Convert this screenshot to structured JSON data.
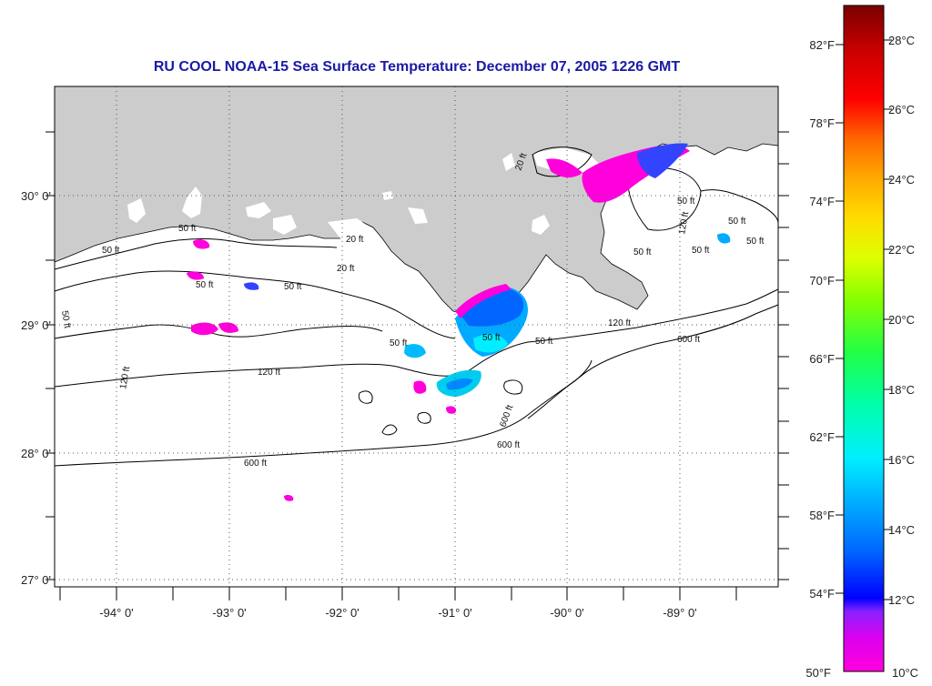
{
  "title": "RU COOL  NOAA-15  Sea Surface Temperature:  December 07, 2005 1226 GMT",
  "map": {
    "latitude_labels": [
      "30° 0'",
      "29° 0'",
      "28° 0'",
      "27° 0'"
    ],
    "longitude_labels": [
      "-94° 0'",
      "-93° 0'",
      "-92° 0'",
      "-91° 0'",
      "-90° 0'",
      "-89° 0'"
    ],
    "contour_labels": [
      "50 ft",
      "50 ft",
      "50 ft",
      "20 ft",
      "20 ft",
      "50 ft",
      "50 ft",
      "120 ft",
      "120 ft",
      "120 ft",
      "50 ft",
      "50 ft",
      "600 ft",
      "600 ft",
      "600 ft",
      "600 ft",
      "50 ft",
      "120 ft",
      "50 ft",
      "50 ft",
      "20 ft",
      "50 ft",
      "50 ft",
      "50 ft"
    ],
    "colors": {
      "land": "#cccccc",
      "sea": "#ffffff",
      "contour": "#000000",
      "grid": "#555555",
      "title": "#1a1aa6"
    }
  },
  "colorbar": {
    "fahrenheit_labels": [
      "82°F",
      "78°F",
      "74°F",
      "70°F",
      "66°F",
      "62°F",
      "58°F",
      "54°F",
      "50°F"
    ],
    "celsius_labels": [
      "28°C",
      "26°C",
      "24°C",
      "22°C",
      "20°C",
      "18°C",
      "16°C",
      "14°C",
      "12°C",
      "10°C"
    ],
    "range_celsius": [
      10,
      29
    ],
    "colors": [
      "#ff00dd",
      "#dd00ee",
      "#8822ff",
      "#0000ff",
      "#0066ff",
      "#00aaff",
      "#00eeff",
      "#00ffaa",
      "#22ff44",
      "#88ff00",
      "#ddff00",
      "#ffdd00",
      "#ffaa00",
      "#ff6600",
      "#ff0000",
      "#cc0000",
      "#7a0000"
    ]
  }
}
